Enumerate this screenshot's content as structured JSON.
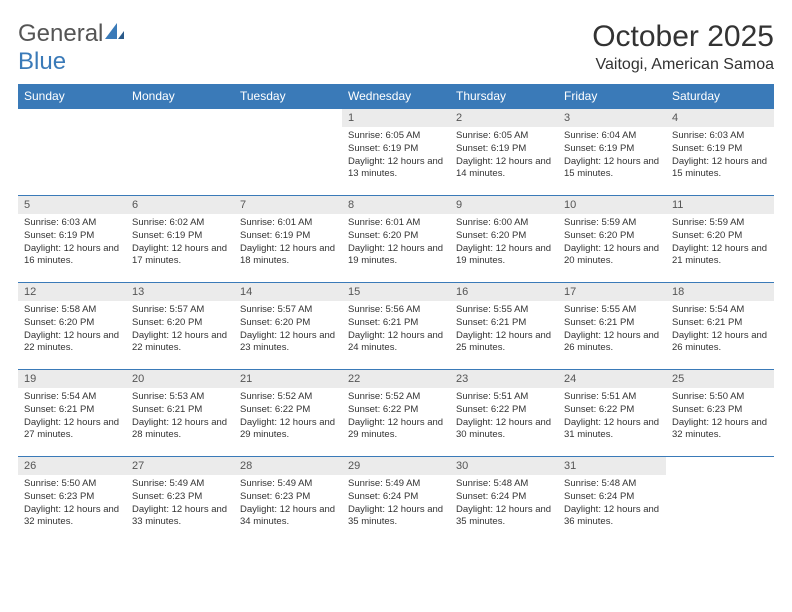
{
  "brand": {
    "part1": "General",
    "part2": "Blue",
    "color_gray": "#555555",
    "color_blue": "#3a7ab8"
  },
  "title": "October 2025",
  "location": "Vaitogi, American Samoa",
  "colors": {
    "header_bg": "#3a7ab8",
    "header_text": "#ffffff",
    "daynum_bg": "#ebebeb",
    "text": "#333333",
    "row_border": "#3a7ab8"
  },
  "typography": {
    "title_fontsize": 30,
    "location_fontsize": 16,
    "dayheader_fontsize": 12,
    "daynum_fontsize": 11,
    "body_fontsize": 9.5
  },
  "day_headers": [
    "Sunday",
    "Monday",
    "Tuesday",
    "Wednesday",
    "Thursday",
    "Friday",
    "Saturday"
  ],
  "weeks": [
    [
      null,
      null,
      null,
      {
        "num": "1",
        "sunrise": "Sunrise: 6:05 AM",
        "sunset": "Sunset: 6:19 PM",
        "daylight": "Daylight: 12 hours and 13 minutes."
      },
      {
        "num": "2",
        "sunrise": "Sunrise: 6:05 AM",
        "sunset": "Sunset: 6:19 PM",
        "daylight": "Daylight: 12 hours and 14 minutes."
      },
      {
        "num": "3",
        "sunrise": "Sunrise: 6:04 AM",
        "sunset": "Sunset: 6:19 PM",
        "daylight": "Daylight: 12 hours and 15 minutes."
      },
      {
        "num": "4",
        "sunrise": "Sunrise: 6:03 AM",
        "sunset": "Sunset: 6:19 PM",
        "daylight": "Daylight: 12 hours and 15 minutes."
      }
    ],
    [
      {
        "num": "5",
        "sunrise": "Sunrise: 6:03 AM",
        "sunset": "Sunset: 6:19 PM",
        "daylight": "Daylight: 12 hours and 16 minutes."
      },
      {
        "num": "6",
        "sunrise": "Sunrise: 6:02 AM",
        "sunset": "Sunset: 6:19 PM",
        "daylight": "Daylight: 12 hours and 17 minutes."
      },
      {
        "num": "7",
        "sunrise": "Sunrise: 6:01 AM",
        "sunset": "Sunset: 6:19 PM",
        "daylight": "Daylight: 12 hours and 18 minutes."
      },
      {
        "num": "8",
        "sunrise": "Sunrise: 6:01 AM",
        "sunset": "Sunset: 6:20 PM",
        "daylight": "Daylight: 12 hours and 19 minutes."
      },
      {
        "num": "9",
        "sunrise": "Sunrise: 6:00 AM",
        "sunset": "Sunset: 6:20 PM",
        "daylight": "Daylight: 12 hours and 19 minutes."
      },
      {
        "num": "10",
        "sunrise": "Sunrise: 5:59 AM",
        "sunset": "Sunset: 6:20 PM",
        "daylight": "Daylight: 12 hours and 20 minutes."
      },
      {
        "num": "11",
        "sunrise": "Sunrise: 5:59 AM",
        "sunset": "Sunset: 6:20 PM",
        "daylight": "Daylight: 12 hours and 21 minutes."
      }
    ],
    [
      {
        "num": "12",
        "sunrise": "Sunrise: 5:58 AM",
        "sunset": "Sunset: 6:20 PM",
        "daylight": "Daylight: 12 hours and 22 minutes."
      },
      {
        "num": "13",
        "sunrise": "Sunrise: 5:57 AM",
        "sunset": "Sunset: 6:20 PM",
        "daylight": "Daylight: 12 hours and 22 minutes."
      },
      {
        "num": "14",
        "sunrise": "Sunrise: 5:57 AM",
        "sunset": "Sunset: 6:20 PM",
        "daylight": "Daylight: 12 hours and 23 minutes."
      },
      {
        "num": "15",
        "sunrise": "Sunrise: 5:56 AM",
        "sunset": "Sunset: 6:21 PM",
        "daylight": "Daylight: 12 hours and 24 minutes."
      },
      {
        "num": "16",
        "sunrise": "Sunrise: 5:55 AM",
        "sunset": "Sunset: 6:21 PM",
        "daylight": "Daylight: 12 hours and 25 minutes."
      },
      {
        "num": "17",
        "sunrise": "Sunrise: 5:55 AM",
        "sunset": "Sunset: 6:21 PM",
        "daylight": "Daylight: 12 hours and 26 minutes."
      },
      {
        "num": "18",
        "sunrise": "Sunrise: 5:54 AM",
        "sunset": "Sunset: 6:21 PM",
        "daylight": "Daylight: 12 hours and 26 minutes."
      }
    ],
    [
      {
        "num": "19",
        "sunrise": "Sunrise: 5:54 AM",
        "sunset": "Sunset: 6:21 PM",
        "daylight": "Daylight: 12 hours and 27 minutes."
      },
      {
        "num": "20",
        "sunrise": "Sunrise: 5:53 AM",
        "sunset": "Sunset: 6:21 PM",
        "daylight": "Daylight: 12 hours and 28 minutes."
      },
      {
        "num": "21",
        "sunrise": "Sunrise: 5:52 AM",
        "sunset": "Sunset: 6:22 PM",
        "daylight": "Daylight: 12 hours and 29 minutes."
      },
      {
        "num": "22",
        "sunrise": "Sunrise: 5:52 AM",
        "sunset": "Sunset: 6:22 PM",
        "daylight": "Daylight: 12 hours and 29 minutes."
      },
      {
        "num": "23",
        "sunrise": "Sunrise: 5:51 AM",
        "sunset": "Sunset: 6:22 PM",
        "daylight": "Daylight: 12 hours and 30 minutes."
      },
      {
        "num": "24",
        "sunrise": "Sunrise: 5:51 AM",
        "sunset": "Sunset: 6:22 PM",
        "daylight": "Daylight: 12 hours and 31 minutes."
      },
      {
        "num": "25",
        "sunrise": "Sunrise: 5:50 AM",
        "sunset": "Sunset: 6:23 PM",
        "daylight": "Daylight: 12 hours and 32 minutes."
      }
    ],
    [
      {
        "num": "26",
        "sunrise": "Sunrise: 5:50 AM",
        "sunset": "Sunset: 6:23 PM",
        "daylight": "Daylight: 12 hours and 32 minutes."
      },
      {
        "num": "27",
        "sunrise": "Sunrise: 5:49 AM",
        "sunset": "Sunset: 6:23 PM",
        "daylight": "Daylight: 12 hours and 33 minutes."
      },
      {
        "num": "28",
        "sunrise": "Sunrise: 5:49 AM",
        "sunset": "Sunset: 6:23 PM",
        "daylight": "Daylight: 12 hours and 34 minutes."
      },
      {
        "num": "29",
        "sunrise": "Sunrise: 5:49 AM",
        "sunset": "Sunset: 6:24 PM",
        "daylight": "Daylight: 12 hours and 35 minutes."
      },
      {
        "num": "30",
        "sunrise": "Sunrise: 5:48 AM",
        "sunset": "Sunset: 6:24 PM",
        "daylight": "Daylight: 12 hours and 35 minutes."
      },
      {
        "num": "31",
        "sunrise": "Sunrise: 5:48 AM",
        "sunset": "Sunset: 6:24 PM",
        "daylight": "Daylight: 12 hours and 36 minutes."
      },
      null
    ]
  ]
}
